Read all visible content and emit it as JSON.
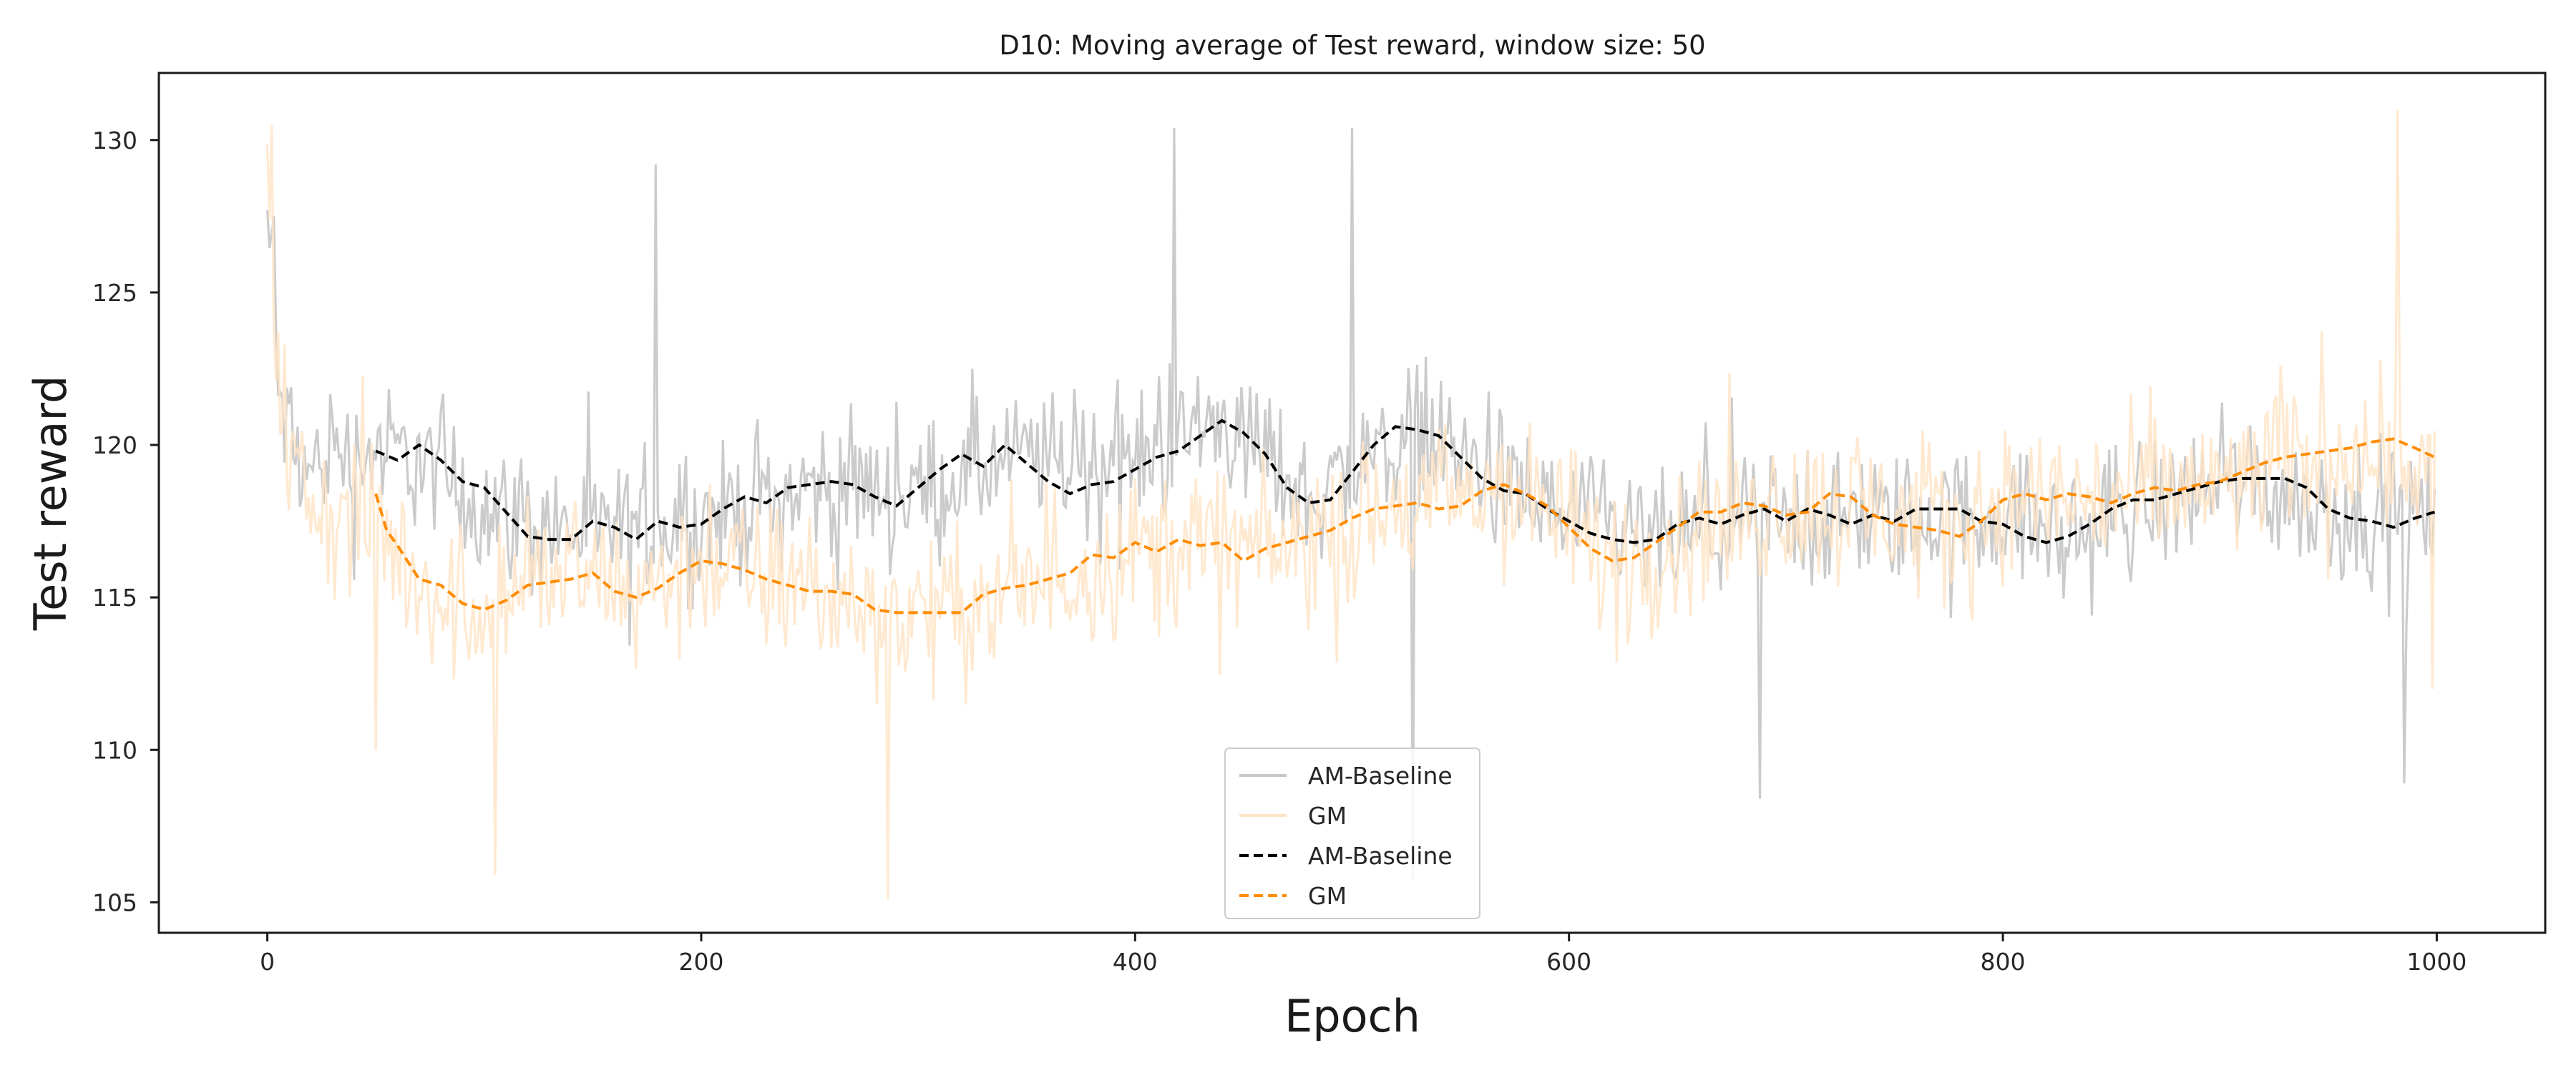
{
  "chart_data": {
    "type": "line",
    "title": "D10: Moving average of Test reward, window size: 50",
    "xlabel": "Epoch",
    "ylabel": "Test reward",
    "xlim": [
      -50,
      1050
    ],
    "ylim": [
      104,
      132.2
    ],
    "xticks": [
      0,
      200,
      400,
      600,
      800,
      1000
    ],
    "yticks": [
      105,
      110,
      115,
      120,
      125,
      130
    ],
    "grid": false,
    "legend_position": "lower-center",
    "legend": [
      {
        "name": "AM-Baseline",
        "style": "solid",
        "color": "#c8c8c8"
      },
      {
        "name": "GM",
        "style": "solid",
        "color": "#ffe4c4"
      },
      {
        "name": "AM-Baseline",
        "style": "dashed",
        "color": "#000000"
      },
      {
        "name": "GM",
        "style": "dashed",
        "color": "#ff8c00"
      }
    ],
    "raw_series": [
      {
        "name": "AM-Baseline",
        "color": "#c8c8c8",
        "x_start": 0,
        "x_end": 999,
        "count": 1000,
        "anchors_x": [
          0,
          5,
          10,
          20,
          30,
          40,
          50,
          70,
          100,
          150,
          200,
          250,
          300,
          350,
          400,
          440,
          480,
          530,
          570,
          600,
          640,
          700,
          750,
          800,
          830,
          870,
          910,
          950,
          999
        ],
        "anchors_y": [
          127.5,
          122,
          120,
          119,
          120,
          119.5,
          119.8,
          119.5,
          118,
          117,
          117.5,
          118.6,
          118.5,
          119.6,
          119.5,
          120.8,
          118.2,
          120.6,
          118.5,
          117.5,
          116.8,
          117.6,
          117.5,
          117.8,
          116.9,
          118.2,
          119,
          117.8,
          117.8
        ],
        "noise_amplitude": 3.2,
        "extremes": [
          [
            3,
            127.5
          ],
          [
            179,
            129.2
          ],
          [
            418,
            130.4
          ],
          [
            500,
            130.4
          ],
          [
            528,
            105.7
          ],
          [
            985,
            108.9
          ],
          [
            688,
            108.4
          ]
        ]
      },
      {
        "name": "GM",
        "color": "#ffe4c4",
        "x_start": 0,
        "x_end": 999,
        "count": 1000,
        "anchors_x": [
          0,
          5,
          10,
          20,
          35,
          50,
          70,
          90,
          130,
          170,
          200,
          240,
          290,
          330,
          360,
          400,
          440,
          470,
          520,
          550,
          570,
          620,
          650,
          700,
          750,
          780,
          800,
          850,
          900,
          960,
          999
        ],
        "anchors_y": [
          127.5,
          123,
          119.5,
          118,
          117.5,
          117.5,
          115.5,
          114.5,
          115.8,
          115.2,
          116.2,
          115.5,
          114.3,
          114.8,
          115.5,
          116.7,
          116.8,
          116.5,
          117.8,
          118.2,
          118.7,
          116.2,
          117,
          118,
          117.8,
          117.2,
          118.3,
          118.2,
          118.7,
          120,
          119.5
        ],
        "noise_amplitude": 3.6,
        "extremes": [
          [
            2,
            130.5
          ],
          [
            50,
            110
          ],
          [
            105,
            105.9
          ],
          [
            286,
            105.1
          ],
          [
            982,
            131
          ],
          [
            998,
            112
          ]
        ]
      }
    ],
    "series": [
      {
        "name": "AM-Baseline",
        "style": "dashed",
        "color": "#000000",
        "x": [
          50,
          60,
          70,
          80,
          90,
          100,
          110,
          120,
          130,
          140,
          150,
          160,
          170,
          180,
          190,
          200,
          210,
          220,
          230,
          240,
          250,
          260,
          270,
          280,
          290,
          300,
          310,
          320,
          330,
          340,
          350,
          360,
          370,
          380,
          390,
          400,
          410,
          420,
          430,
          440,
          450,
          460,
          470,
          480,
          490,
          500,
          510,
          520,
          530,
          540,
          550,
          560,
          570,
          580,
          590,
          600,
          610,
          620,
          630,
          640,
          650,
          660,
          670,
          680,
          690,
          700,
          710,
          720,
          730,
          740,
          750,
          760,
          770,
          780,
          790,
          800,
          810,
          820,
          830,
          840,
          850,
          860,
          870,
          880,
          890,
          900,
          910,
          920,
          930,
          940,
          950,
          960,
          970,
          980,
          990,
          999
        ],
        "y": [
          119.8,
          119.5,
          120,
          119.5,
          118.8,
          118.6,
          117.8,
          117,
          116.9,
          116.9,
          117.5,
          117.3,
          116.9,
          117.5,
          117.3,
          117.4,
          117.9,
          118.3,
          118.1,
          118.6,
          118.7,
          118.8,
          118.7,
          118.3,
          118,
          118.6,
          119.2,
          119.7,
          119.3,
          120,
          119.4,
          118.8,
          118.4,
          118.7,
          118.8,
          119.2,
          119.6,
          119.8,
          120.3,
          120.8,
          120.4,
          119.7,
          118.6,
          118.1,
          118.2,
          119.1,
          120,
          120.6,
          120.5,
          120.3,
          119.6,
          118.9,
          118.5,
          118.4,
          117.9,
          117.5,
          117.1,
          116.9,
          116.8,
          116.9,
          117.4,
          117.6,
          117.4,
          117.7,
          117.9,
          117.5,
          117.9,
          117.7,
          117.4,
          117.7,
          117.5,
          117.9,
          117.9,
          117.9,
          117.5,
          117.4,
          117,
          116.8,
          117,
          117.4,
          117.9,
          118.2,
          118.2,
          118.4,
          118.6,
          118.8,
          118.9,
          118.9,
          118.9,
          118.6,
          117.9,
          117.6,
          117.5,
          117.3,
          117.6,
          117.8
        ]
      },
      {
        "name": "GM",
        "style": "dashed",
        "color": "#ff8c00",
        "x": [
          50,
          55,
          60,
          70,
          80,
          90,
          100,
          110,
          120,
          130,
          140,
          150,
          160,
          170,
          180,
          190,
          200,
          210,
          220,
          230,
          240,
          250,
          260,
          270,
          280,
          290,
          300,
          310,
          320,
          330,
          340,
          350,
          360,
          370,
          380,
          390,
          400,
          410,
          420,
          430,
          440,
          450,
          460,
          470,
          480,
          490,
          500,
          510,
          520,
          530,
          540,
          550,
          560,
          570,
          580,
          590,
          600,
          610,
          620,
          630,
          640,
          650,
          660,
          670,
          680,
          690,
          700,
          710,
          720,
          730,
          740,
          750,
          760,
          770,
          780,
          790,
          800,
          810,
          820,
          830,
          840,
          850,
          860,
          870,
          880,
          890,
          900,
          910,
          920,
          930,
          940,
          950,
          960,
          970,
          980,
          990,
          999
        ],
        "y": [
          118.4,
          117.2,
          116.7,
          115.6,
          115.4,
          114.8,
          114.6,
          114.9,
          115.4,
          115.5,
          115.6,
          115.8,
          115.2,
          115,
          115.3,
          115.8,
          116.2,
          116.1,
          115.9,
          115.6,
          115.4,
          115.2,
          115.2,
          115.1,
          114.6,
          114.5,
          114.5,
          114.5,
          114.5,
          115.1,
          115.3,
          115.4,
          115.6,
          115.8,
          116.4,
          116.3,
          116.8,
          116.5,
          116.9,
          116.7,
          116.8,
          116.2,
          116.6,
          116.8,
          117,
          117.2,
          117.6,
          117.9,
          118,
          118.1,
          117.9,
          118,
          118.5,
          118.7,
          118.4,
          118,
          117.3,
          116.6,
          116.2,
          116.3,
          116.8,
          117.3,
          117.8,
          117.8,
          118.1,
          118,
          117.7,
          117.8,
          118.4,
          118.3,
          117.7,
          117.4,
          117.3,
          117.2,
          117,
          117.5,
          118.2,
          118.4,
          118.2,
          118.4,
          118.3,
          118.1,
          118.4,
          118.6,
          118.5,
          118.7,
          118.8,
          119.1,
          119.4,
          119.6,
          119.7,
          119.8,
          119.9,
          120.1,
          120.2,
          119.9,
          119.6
        ]
      }
    ]
  }
}
